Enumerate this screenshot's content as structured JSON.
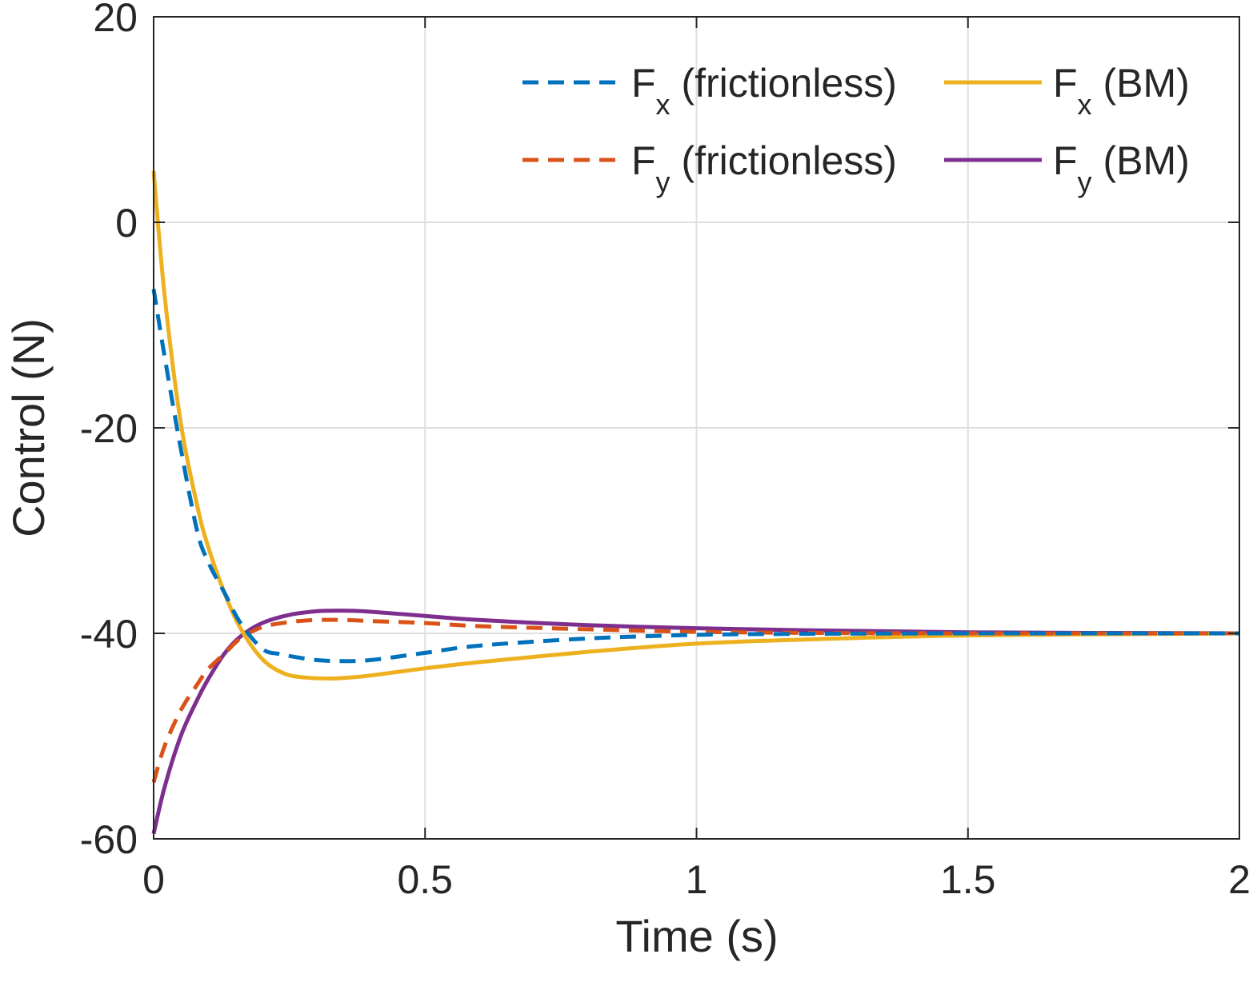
{
  "chart_data": {
    "type": "line",
    "title": "",
    "xlabel": "Time (s)",
    "ylabel": "Control (N)",
    "xlim": [
      0,
      2
    ],
    "ylim": [
      -60,
      20
    ],
    "xticks": [
      0,
      0.5,
      1,
      1.5,
      2
    ],
    "xtick_labels": [
      "0",
      "0.5",
      "1",
      "1.5",
      "2"
    ],
    "yticks": [
      -60,
      -40,
      -20,
      0,
      20
    ],
    "ytick_labels": [
      "-60",
      "-40",
      "-20",
      "0",
      "20"
    ],
    "grid": true,
    "legend_position": "top-right",
    "legend_columns": 2,
    "series": [
      {
        "name": "F_x (frictionless)",
        "label_main": "F",
        "label_sub": "x",
        "label_rest": " (frictionless)",
        "color": "#0072BD",
        "style": "dashed",
        "x": [
          0,
          0.02,
          0.05,
          0.08,
          0.1,
          0.13,
          0.16,
          0.2,
          0.23,
          0.25,
          0.3,
          0.35,
          0.4,
          0.5,
          0.6,
          0.8,
          1.0,
          1.2,
          1.5,
          2.0
        ],
        "y": [
          -6.5,
          -13,
          -22,
          -30,
          -33,
          -36,
          -39,
          -41.5,
          -42.0,
          -42.2,
          -42.6,
          -42.7,
          -42.6,
          -41.9,
          -41.2,
          -40.5,
          -40.15,
          -40.05,
          -40.0,
          -40.0
        ]
      },
      {
        "name": "F_y (frictionless)",
        "label_main": "F",
        "label_sub": "y",
        "label_rest": " (frictionless)",
        "color": "#D95319",
        "style": "dashed",
        "x": [
          0,
          0.02,
          0.05,
          0.08,
          0.1,
          0.13,
          0.16,
          0.2,
          0.25,
          0.3,
          0.35,
          0.4,
          0.5,
          0.6,
          0.8,
          1.0,
          1.2,
          1.5,
          2.0
        ],
        "y": [
          -54.5,
          -51,
          -47.5,
          -45,
          -43.5,
          -42,
          -40.5,
          -39.4,
          -38.9,
          -38.7,
          -38.7,
          -38.8,
          -39.0,
          -39.3,
          -39.6,
          -39.85,
          -39.95,
          -40.0,
          -40.0
        ]
      },
      {
        "name": "F_x (BM)",
        "label_main": "F",
        "label_sub": "x",
        "label_rest": " (BM)",
        "color": "#EDB120",
        "style": "solid",
        "x": [
          0,
          0.02,
          0.05,
          0.08,
          0.1,
          0.13,
          0.16,
          0.2,
          0.24,
          0.28,
          0.33,
          0.36,
          0.4,
          0.5,
          0.6,
          0.8,
          1.0,
          1.2,
          1.5,
          2.0
        ],
        "y": [
          5,
          -7,
          -19.5,
          -27.5,
          -31.5,
          -36,
          -39.5,
          -42.5,
          -43.9,
          -44.3,
          -44.4,
          -44.3,
          -44.1,
          -43.4,
          -42.8,
          -41.8,
          -41.0,
          -40.6,
          -40.2,
          -40.0
        ]
      },
      {
        "name": "F_y (BM)",
        "label_main": "F",
        "label_sub": "y",
        "label_rest": " (BM)",
        "color": "#7E2F8E",
        "style": "solid",
        "x": [
          0,
          0.02,
          0.05,
          0.08,
          0.1,
          0.13,
          0.16,
          0.2,
          0.25,
          0.3,
          0.33,
          0.36,
          0.4,
          0.5,
          0.6,
          0.8,
          1.0,
          1.2,
          1.5,
          2.0
        ],
        "y": [
          -59.5,
          -55,
          -50,
          -46.5,
          -44.5,
          -42,
          -40.3,
          -39,
          -38.2,
          -37.85,
          -37.8,
          -37.8,
          -37.9,
          -38.3,
          -38.7,
          -39.2,
          -39.5,
          -39.7,
          -39.9,
          -40.0
        ]
      }
    ]
  }
}
